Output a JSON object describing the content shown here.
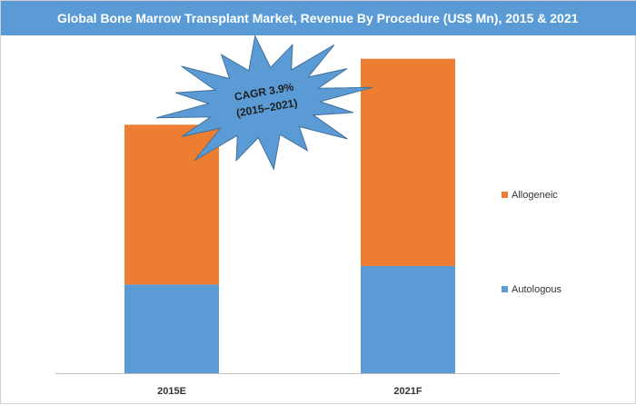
{
  "title": "Global Bone Marrow Transplant Market, Revenue By Procedure (US$ Mn), 2015 & 2021",
  "annotation": {
    "line1": "CAGR 3.9%",
    "line2": "(2015–2021)"
  },
  "colors": {
    "title_bar": "#5b9bd5",
    "Autologous": "#5b9bd5",
    "Allogeneic": "#ed7d31",
    "burst": "#5b9bd5"
  },
  "chart_data": {
    "type": "bar",
    "stacked": true,
    "categories": [
      "2015E",
      "2021F"
    ],
    "series": [
      {
        "name": "Autologous",
        "values": [
          86,
          104
        ]
      },
      {
        "name": "Allogeneic",
        "values": [
          155,
          201
        ]
      }
    ],
    "ylim": [
      0,
      310
    ],
    "grid": false,
    "legend_position": "right",
    "title": "Global Bone Marrow Transplant Market, Revenue By Procedure (US$ Mn), 2015 & 2021",
    "xlabel": "",
    "ylabel": ""
  }
}
